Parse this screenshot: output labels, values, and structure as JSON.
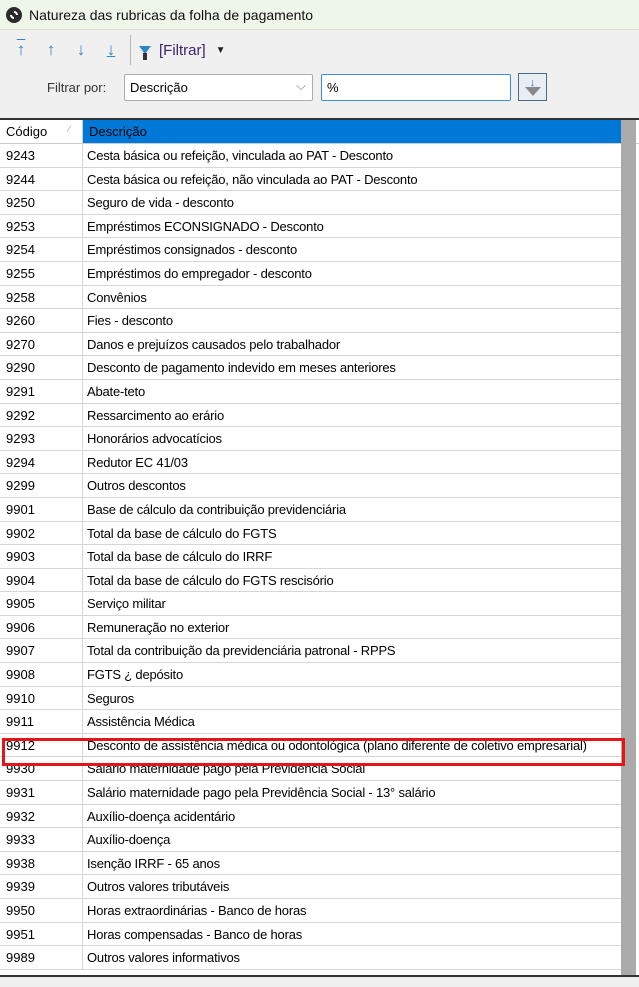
{
  "window": {
    "title": "Natureza das rubricas da folha de pagamento"
  },
  "toolbar": {
    "first": "first-record",
    "prev": "previous-record",
    "next": "next-record",
    "last": "last-record",
    "filter_label": "[Filtrar]"
  },
  "filter": {
    "label": "Filtrar por:",
    "field": "Descrição",
    "value": "%"
  },
  "grid": {
    "columns": [
      "Código",
      "Descrição"
    ],
    "highlight_color": "#e4141a",
    "selected_header_color": "#0078d7",
    "rows": [
      [
        "9243",
        "Cesta básica ou refeição, vinculada ao PAT - Desconto"
      ],
      [
        "9244",
        "Cesta básica ou refeição, não vinculada ao PAT - Desconto"
      ],
      [
        "9250",
        "Seguro de vida - desconto"
      ],
      [
        "9253",
        "Empréstimos ECONSIGNADO - Desconto"
      ],
      [
        "9254",
        "Empréstimos consignados - desconto"
      ],
      [
        "9255",
        "Empréstimos do empregador - desconto"
      ],
      [
        "9258",
        "Convênios"
      ],
      [
        "9260",
        "Fies - desconto"
      ],
      [
        "9270",
        "Danos e prejuízos causados pelo trabalhador"
      ],
      [
        "9290",
        "Desconto de pagamento indevido em meses anteriores"
      ],
      [
        "9291",
        "Abate-teto"
      ],
      [
        "9292",
        "Ressarcimento ao erário"
      ],
      [
        "9293",
        "Honorários advocatícios"
      ],
      [
        "9294",
        "Redutor EC 41/03"
      ],
      [
        "9299",
        "Outros descontos"
      ],
      [
        "9901",
        "Base de cálculo da contribuição previdenciária"
      ],
      [
        "9902",
        "Total da base de cálculo do FGTS"
      ],
      [
        "9903",
        "Total da base de cálculo do IRRF"
      ],
      [
        "9904",
        "Total da base de cálculo do FGTS rescisório"
      ],
      [
        "9905",
        "Serviço militar"
      ],
      [
        "9906",
        "Remuneração no exterior"
      ],
      [
        "9907",
        "Total da contribuição da previdenciária patronal - RPPS"
      ],
      [
        "9908",
        "FGTS ¿ depósito"
      ],
      [
        "9910",
        "Seguros"
      ],
      [
        "9911",
        "Assistência Médica"
      ],
      [
        "9912",
        "Desconto de assistência médica ou odontológica (plano diferente de coletivo empresarial)"
      ],
      [
        "9930",
        "Salário maternidade pago pela Previdência Social"
      ],
      [
        "9931",
        "Salário maternidade pago pela Previdência Social - 13° salário"
      ],
      [
        "9932",
        "Auxílio-doença acidentário"
      ],
      [
        "9933",
        "Auxílio-doença"
      ],
      [
        "9938",
        "Isenção IRRF - 65 anos"
      ],
      [
        "9939",
        "Outros valores tributáveis"
      ],
      [
        "9950",
        "Horas extraordinárias - Banco de horas"
      ],
      [
        "9951",
        "Horas compensadas - Banco de horas"
      ],
      [
        "9989",
        "Outros valores informativos"
      ]
    ]
  }
}
